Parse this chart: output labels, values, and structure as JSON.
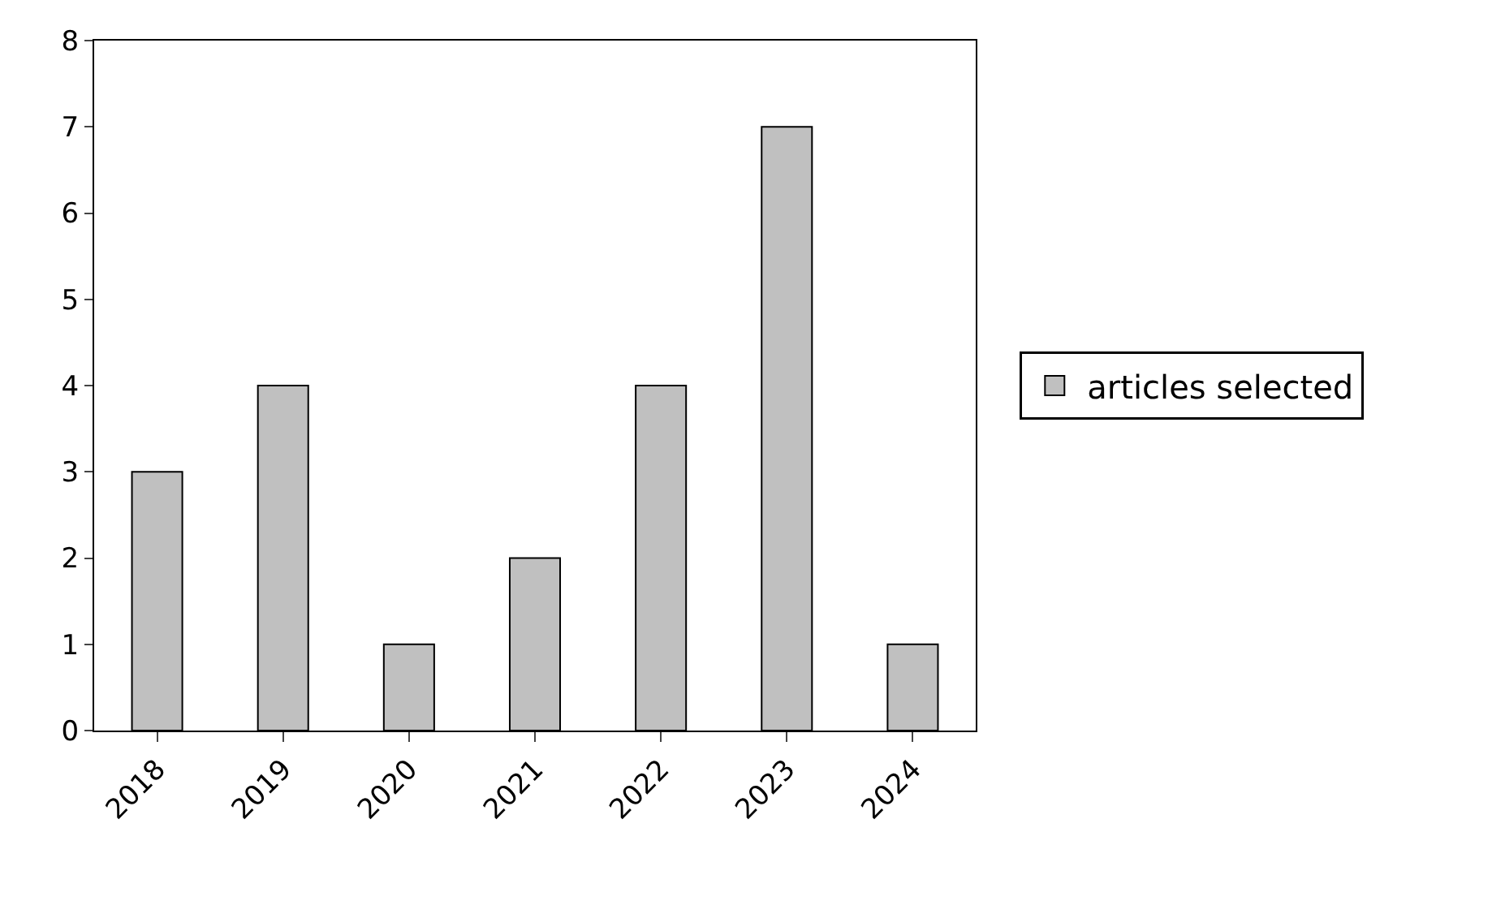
{
  "chart_data": {
    "type": "bar",
    "categories": [
      "2018",
      "2019",
      "2020",
      "2021",
      "2022",
      "2023",
      "2024"
    ],
    "series": [
      {
        "name": "articles selected",
        "color": "#c0c0c0",
        "values": [
          3,
          4,
          1,
          2,
          4,
          7,
          1
        ]
      }
    ],
    "ylim": [
      0,
      8
    ],
    "yticks": [
      0,
      1,
      2,
      3,
      4,
      5,
      6,
      7,
      8
    ],
    "grid": false,
    "legend": "right"
  }
}
